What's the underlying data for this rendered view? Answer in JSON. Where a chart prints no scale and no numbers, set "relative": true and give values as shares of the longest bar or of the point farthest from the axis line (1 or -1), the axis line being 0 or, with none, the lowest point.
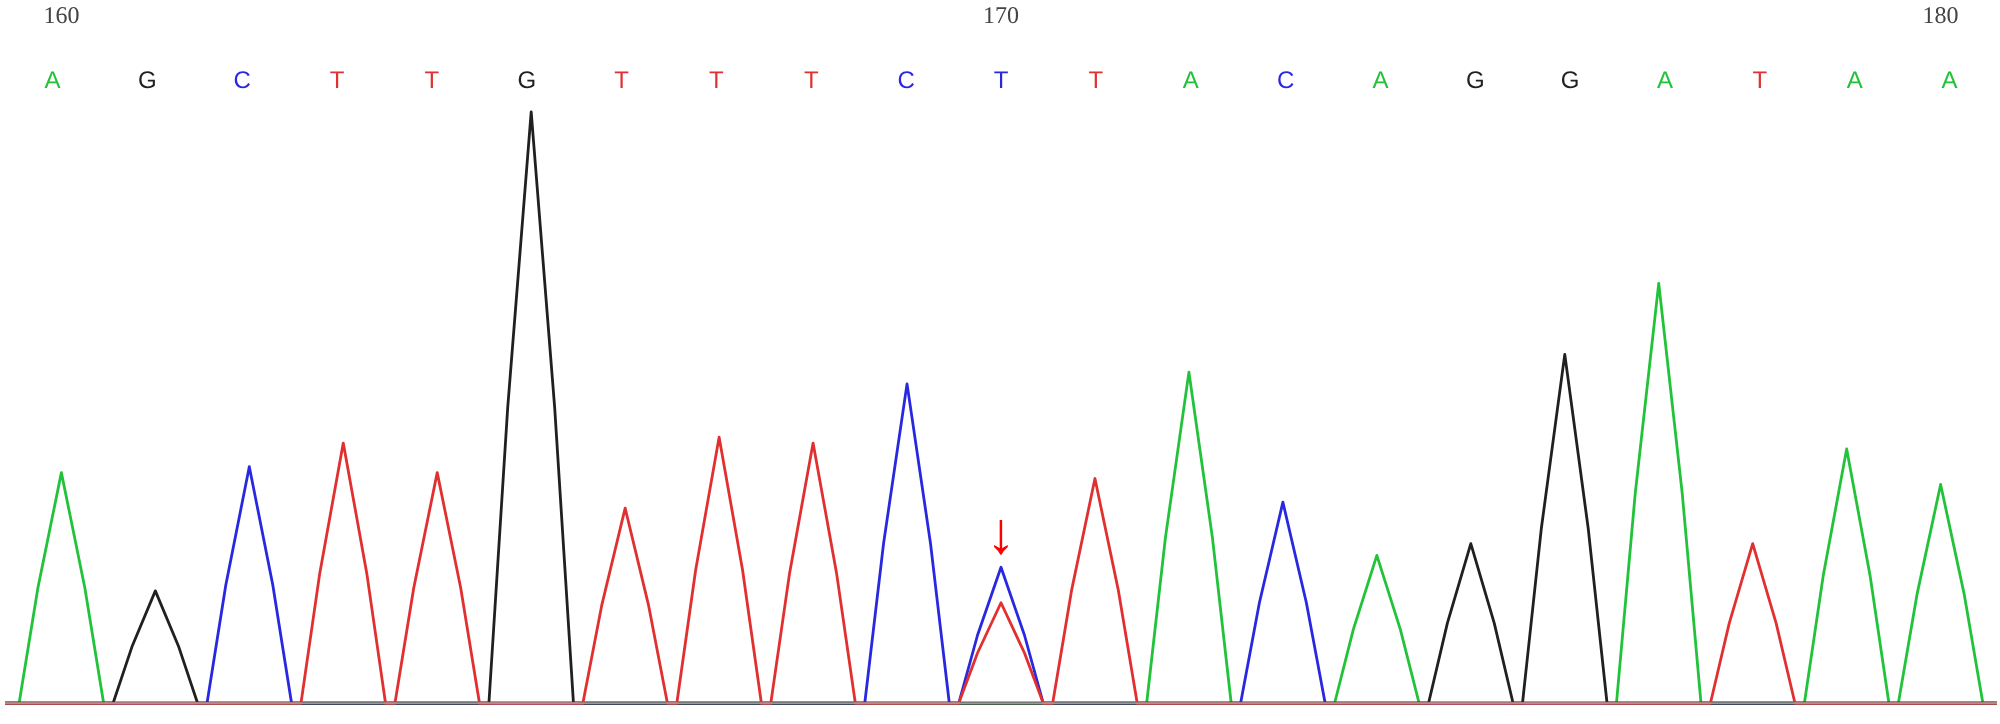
{
  "chart_data": {
    "type": "line",
    "relative": true,
    "xlim": [
      159.4,
      180.6
    ],
    "xticks": [
      160,
      170,
      180
    ],
    "grid": false,
    "marker": "none",
    "line_style": "solid",
    "series": [
      {
        "color": "#22c33a",
        "x": [
          159.4,
          159.55,
          159.75,
          160,
          160.25,
          160.45,
          171.55,
          171.75,
          172,
          172.25,
          172.45,
          173.55,
          173.75,
          174,
          174.25,
          174.45,
          176.55,
          176.75,
          177,
          177.25,
          177.45,
          178.55,
          178.75,
          179,
          179.25,
          179.45,
          179.55,
          179.75,
          180,
          180.25,
          180.45,
          180.6
        ],
        "values": [
          0,
          0,
          0.195,
          0.39,
          0.195,
          0,
          0,
          0.28,
          0.56,
          0.28,
          0,
          0,
          0.125,
          0.25,
          0.125,
          0,
          0,
          0.355,
          0.71,
          0.355,
          0,
          0,
          0.215,
          0.43,
          0.215,
          0,
          0,
          0.185,
          0.37,
          0.185,
          0,
          0
        ]
      },
      {
        "color": "#2828e0",
        "x": [
          159.4,
          161.55,
          161.75,
          162,
          162.25,
          162.45,
          168.55,
          168.75,
          169,
          169.25,
          169.45,
          169.55,
          169.75,
          170,
          170.25,
          170.45,
          172.55,
          172.75,
          173,
          173.25,
          173.45,
          180.6
        ],
        "values": [
          0,
          0,
          0.2,
          0.4,
          0.2,
          0,
          0,
          0.27,
          0.54,
          0.27,
          0,
          0,
          0.115,
          0.23,
          0.115,
          0,
          0,
          0.17,
          0.34,
          0.17,
          0,
          0
        ]
      },
      {
        "color": "#202020",
        "x": [
          159.4,
          160.55,
          160.75,
          161,
          161.25,
          161.45,
          164.55,
          164.75,
          165,
          165.25,
          165.45,
          174.55,
          174.75,
          175,
          175.25,
          175.45,
          175.55,
          175.75,
          176,
          176.25,
          176.45,
          180.6
        ],
        "values": [
          0,
          0,
          0.095,
          0.19,
          0.095,
          0,
          0,
          0.5,
          1,
          0.5,
          0,
          0,
          0.135,
          0.27,
          0.135,
          0,
          0,
          0.295,
          0.59,
          0.295,
          0,
          0
        ]
      },
      {
        "color": "#e03030",
        "x": [
          159.4,
          162.55,
          162.75,
          163,
          163.25,
          163.45,
          163.55,
          163.75,
          164,
          164.25,
          164.45,
          165.55,
          165.75,
          166,
          166.25,
          166.45,
          166.55,
          166.75,
          167,
          167.25,
          167.45,
          167.55,
          167.75,
          168,
          168.25,
          168.45,
          169.55,
          169.75,
          170,
          170.25,
          170.45,
          170.55,
          170.75,
          171,
          171.25,
          171.45,
          177.55,
          177.75,
          178,
          178.25,
          178.45,
          180.6
        ],
        "values": [
          0,
          0,
          0.22,
          0.44,
          0.22,
          0,
          0,
          0.195,
          0.39,
          0.195,
          0,
          0,
          0.165,
          0.33,
          0.165,
          0,
          0,
          0.225,
          0.45,
          0.225,
          0,
          0,
          0.22,
          0.44,
          0.22,
          0,
          0,
          0.085,
          0.17,
          0.085,
          0,
          0,
          0.19,
          0.38,
          0.19,
          0,
          0,
          0.135,
          0.27,
          0.135,
          0,
          0
        ]
      }
    ],
    "annotations": [
      "A",
      "G",
      "C",
      "T",
      "T",
      "G",
      "T",
      "T",
      "T",
      "C",
      "T",
      "T",
      "A",
      "C",
      "A",
      "G",
      "G",
      "A",
      "T",
      "A",
      "A",
      {
        "text": "↓",
        "x": 170,
        "y": 0.23
      }
    ]
  }
}
